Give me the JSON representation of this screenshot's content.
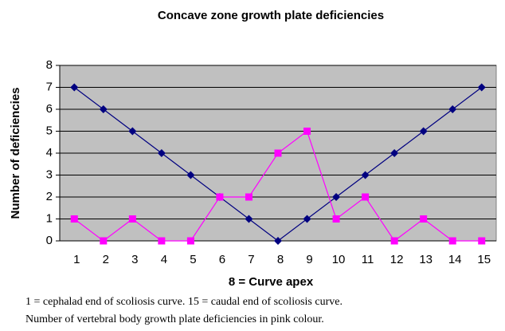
{
  "chart_data": {
    "type": "line",
    "title": "Concave zone growth plate deficiencies",
    "ylabel": "Number of deficiencies",
    "xlabel": "8 = Curve apex",
    "annotations": [
      "1 = cephalad end of scoliosis curve. 15 = caudal end of scoliosis curve.",
      "Number of vertebral body growth plate deficiencies in pink colour."
    ],
    "categories": [
      "1",
      "2",
      "3",
      "4",
      "5",
      "6",
      "7",
      "8",
      "9",
      "10",
      "11",
      "12",
      "13",
      "14",
      "15"
    ],
    "series": [
      {
        "color": "#000080",
        "marker": "diamond",
        "values": [
          7,
          6,
          5,
          4,
          3,
          2,
          1,
          0,
          1,
          2,
          3,
          4,
          5,
          6,
          7
        ]
      },
      {
        "color": "#ff00ff",
        "marker": "square",
        "values": [
          1,
          0,
          1,
          0,
          0,
          2,
          2,
          4,
          5,
          1,
          2,
          0,
          1,
          0,
          0
        ]
      }
    ],
    "ylim": [
      0,
      8
    ],
    "yticks": [
      0,
      1,
      2,
      3,
      4,
      5,
      6,
      7,
      8
    ],
    "grid": true
  }
}
